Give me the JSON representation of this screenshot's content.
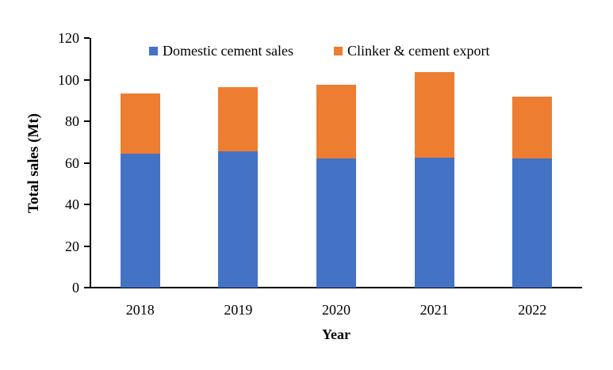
{
  "chart_data": {
    "type": "bar",
    "stacked": true,
    "title": "",
    "xlabel": "Year",
    "ylabel": "Total sales (Mt)",
    "categories": [
      "2018",
      "2019",
      "2020",
      "2021",
      "2022"
    ],
    "series": [
      {
        "name": "Domestic cement sales",
        "color": "#4472C4",
        "values": [
          64.5,
          65.5,
          62.0,
          62.5,
          62.0
        ]
      },
      {
        "name": "Clinker & cement export",
        "color": "#ED7D31",
        "values": [
          29.0,
          31.0,
          35.5,
          41.0,
          30.0
        ]
      }
    ],
    "totals": [
      93.5,
      96.5,
      97.5,
      103.5,
      92.0
    ],
    "ylim": [
      0,
      120
    ],
    "yticks": [
      0,
      20,
      40,
      60,
      80,
      100,
      120
    ],
    "grid": false,
    "legend_position": "top-inside",
    "axis_color": "#000000",
    "text_color": "#000000",
    "background_color": "#FFFFFF"
  }
}
